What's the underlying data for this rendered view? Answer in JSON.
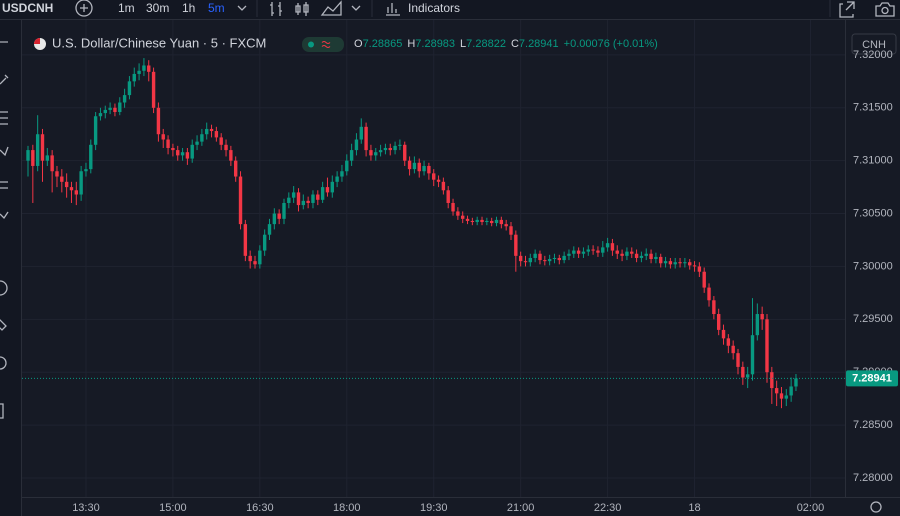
{
  "toolbar": {
    "symbol": "USDCNH",
    "intervals": [
      "1m",
      "30m",
      "1h",
      "5m"
    ],
    "indicators": "Indicators"
  },
  "chart_data": {
    "type": "candlestick",
    "title": "U.S. Dollar/Chinese Yuan · 5 · FXCM",
    "ohlc_labels": [
      "O",
      "H",
      "L",
      "C"
    ],
    "change": "+0.00076 (+0.01%)",
    "currency": "CNH",
    "up_color": "#089981",
    "down_color": "#f23645",
    "grid": true,
    "ylim": [
      7.2782,
      7.3233
    ],
    "yticks": [
      {
        "value": 7.28,
        "label": "7.28000"
      },
      {
        "value": 7.285,
        "label": "7.28500"
      },
      {
        "value": 7.29,
        "label": "7.29000"
      },
      {
        "value": 7.295,
        "label": "7.29500"
      },
      {
        "value": 7.3,
        "label": "7.30000"
      },
      {
        "value": 7.305,
        "label": "7.30500"
      },
      {
        "value": 7.31,
        "label": "7.31000"
      },
      {
        "value": 7.315,
        "label": "7.31500"
      },
      {
        "value": 7.32,
        "label": "7.32000"
      }
    ],
    "categories": [
      null,
      null,
      null,
      null,
      null,
      null,
      null,
      null,
      null,
      null,
      null,
      null,
      "13:30",
      null,
      null,
      null,
      null,
      null,
      null,
      null,
      null,
      null,
      null,
      null,
      null,
      null,
      null,
      null,
      null,
      null,
      "15:00",
      null,
      null,
      null,
      null,
      null,
      null,
      null,
      null,
      null,
      null,
      null,
      null,
      null,
      null,
      null,
      null,
      null,
      "16:30",
      null,
      null,
      null,
      null,
      null,
      null,
      null,
      null,
      null,
      null,
      null,
      null,
      null,
      null,
      null,
      null,
      null,
      "18:00",
      null,
      null,
      null,
      null,
      null,
      null,
      null,
      null,
      null,
      null,
      null,
      null,
      null,
      null,
      null,
      null,
      null,
      "19:30",
      null,
      null,
      null,
      null,
      null,
      null,
      null,
      null,
      null,
      null,
      null,
      null,
      null,
      null,
      null,
      null,
      null,
      "21:00",
      null,
      null,
      null,
      null,
      null,
      null,
      null,
      null,
      null,
      null,
      null,
      null,
      null,
      null,
      null,
      null,
      null,
      "22:30",
      null,
      null,
      null,
      null,
      null,
      null,
      null,
      null,
      null,
      null,
      null,
      null,
      null,
      null,
      null,
      null,
      null,
      "18",
      null,
      null,
      null,
      null,
      null,
      null,
      null,
      null,
      null,
      null,
      null,
      null,
      null,
      null,
      null,
      null,
      null,
      null,
      null,
      null,
      null,
      null,
      null,
      "02:00"
    ],
    "open": [
      7.31,
      7.311,
      7.3095,
      7.3125,
      7.31,
      7.3105,
      7.309,
      7.3085,
      7.308,
      7.3075,
      7.3072,
      7.3068,
      7.309,
      7.3092,
      7.3115,
      7.3142,
      7.3145,
      7.3148,
      7.315,
      7.3146,
      7.3155,
      7.3162,
      7.3175,
      7.3182,
      7.3185,
      7.319,
      7.3184,
      7.315,
      7.3125,
      7.312,
      7.3112,
      7.311,
      7.3105,
      7.3108,
      7.3102,
      7.3115,
      7.3118,
      7.3125,
      7.313,
      7.3128,
      7.3122,
      7.3115,
      7.311,
      7.31,
      7.3085,
      7.304,
      7.301,
      7.3005,
      7.3002,
      7.3015,
      7.303,
      7.304,
      7.305,
      7.3045,
      7.306,
      7.3065,
      7.307,
      7.3058,
      7.3062,
      7.306,
      7.3068,
      7.3063,
      7.3075,
      7.307,
      7.308,
      7.3085,
      7.309,
      7.31,
      7.311,
      7.312,
      7.3132,
      7.311,
      7.3105,
      7.3108,
      7.311,
      7.3112,
      7.311,
      7.3114,
      7.3115,
      7.31,
      7.3092,
      7.3098,
      7.309,
      7.3095,
      7.3088,
      7.3082,
      7.308,
      7.3072,
      7.306,
      7.3052,
      7.3048,
      7.3045,
      7.3043,
      7.3042,
      7.3044,
      7.3042,
      7.3043,
      7.3041,
      7.3044,
      7.304,
      7.3038,
      7.303,
      7.301,
      7.3005,
      7.3004,
      7.3008,
      7.3012,
      7.3006,
      7.3005,
      7.3007,
      7.3008,
      7.3006,
      7.301,
      7.3012,
      7.3015,
      7.3012,
      7.3014,
      7.3016,
      7.3015,
      7.3013,
      7.3018,
      7.3022,
      7.3015,
      7.3012,
      7.301,
      7.3014,
      7.3012,
      7.3008,
      7.301,
      7.3012,
      7.3007,
      7.3009,
      7.3003,
      7.3005,
      7.3002,
      7.3004,
      7.3003,
      7.3004,
      7.3001,
      7.3,
      7.2995,
      7.298,
      7.2968,
      7.2955,
      7.294,
      7.2932,
      7.2925,
      7.2918,
      7.2905,
      7.2895,
      7.2898,
      7.2935,
      7.2955,
      7.295,
      7.29,
      7.2885,
      7.288,
      7.2875,
      7.2878,
      7.28865,
      null,
      null,
      null
    ],
    "high": [
      7.3114,
      7.3115,
      7.3143,
      7.313,
      7.3112,
      7.311,
      7.3095,
      7.3092,
      7.3088,
      7.308,
      7.308,
      7.3095,
      7.3098,
      7.312,
      7.3146,
      7.315,
      7.3152,
      7.3155,
      7.3154,
      7.316,
      7.3168,
      7.318,
      7.3188,
      7.3192,
      7.3197,
      7.3195,
      7.3188,
      7.3155,
      7.313,
      7.3124,
      7.3116,
      7.3114,
      7.3112,
      7.3112,
      7.312,
      7.3124,
      7.313,
      7.3136,
      7.3134,
      7.3132,
      7.3126,
      7.312,
      7.3114,
      7.3104,
      7.309,
      7.3044,
      7.3015,
      7.301,
      7.302,
      7.3035,
      7.3045,
      7.3055,
      7.3054,
      7.3064,
      7.307,
      7.3076,
      7.3074,
      7.3068,
      7.3066,
      7.3072,
      7.3072,
      7.308,
      7.3084,
      7.3086,
      7.309,
      7.3096,
      7.3106,
      7.3116,
      7.3126,
      7.314,
      7.3136,
      7.3115,
      7.3112,
      7.3115,
      7.3116,
      7.3116,
      7.3118,
      7.312,
      7.3118,
      7.3104,
      7.3104,
      7.3102,
      7.31,
      7.3098,
      7.3092,
      7.3086,
      7.3084,
      7.3076,
      7.3064,
      7.3056,
      7.3052,
      7.3048,
      7.3046,
      7.3047,
      7.3047,
      7.3046,
      7.3046,
      7.3047,
      7.3047,
      7.3044,
      7.3042,
      7.3034,
      7.3014,
      7.301,
      7.3012,
      7.3016,
      7.3015,
      7.301,
      7.3011,
      7.3012,
      7.3011,
      7.3014,
      7.3016,
      7.3019,
      7.3018,
      7.3018,
      7.302,
      7.302,
      7.3019,
      7.3024,
      7.3027,
      7.3026,
      7.302,
      7.3016,
      7.3018,
      7.3018,
      7.3016,
      7.3014,
      7.3017,
      7.3016,
      7.3013,
      7.3012,
      7.3009,
      7.3008,
      7.3008,
      7.3008,
      7.3008,
      7.3007,
      7.3005,
      7.3004,
      7.2999,
      7.2984,
      7.2972,
      7.296,
      7.2945,
      7.2936,
      7.293,
      7.2922,
      7.291,
      7.2905,
      7.297,
      7.2965,
      7.2962,
      7.2955,
      7.2905,
      7.2892,
      7.2886,
      7.2884,
      7.2895,
      7.28983,
      null,
      null,
      null
    ],
    "low": [
      7.3085,
      7.306,
      7.309,
      7.308,
      7.3095,
      7.307,
      7.3075,
      7.307,
      7.3065,
      7.306,
      7.3058,
      7.3062,
      7.3085,
      7.3088,
      7.311,
      7.3138,
      7.314,
      7.3144,
      7.3142,
      7.3143,
      7.315,
      7.3158,
      7.317,
      7.3176,
      7.318,
      7.3175,
      7.3145,
      7.3118,
      7.3112,
      7.3106,
      7.3104,
      7.31,
      7.31,
      7.3096,
      7.3098,
      7.311,
      7.3114,
      7.312,
      7.3122,
      7.3118,
      7.311,
      7.3104,
      7.3095,
      7.308,
      7.3035,
      7.3005,
      7.2998,
      7.2998,
      7.2998,
      7.301,
      7.3025,
      7.3035,
      7.304,
      7.304,
      7.3055,
      7.306,
      7.3052,
      7.3054,
      7.3055,
      7.3055,
      7.3058,
      7.306,
      7.3066,
      7.3065,
      7.3075,
      7.308,
      7.3086,
      7.3095,
      7.3105,
      7.3116,
      7.3104,
      7.31,
      7.31,
      7.3104,
      7.3106,
      7.3105,
      7.3106,
      7.311,
      7.3095,
      7.3086,
      7.3088,
      7.3084,
      7.3086,
      7.3082,
      7.3076,
      7.3075,
      7.3068,
      7.3055,
      7.3048,
      7.3044,
      7.3041,
      7.304,
      7.3039,
      7.3039,
      7.3039,
      7.3039,
      7.3038,
      7.3038,
      7.3036,
      7.3034,
      7.3025,
      7.2995,
      7.3,
      7.3,
      7.3,
      7.3004,
      7.3002,
      7.3001,
      7.3001,
      7.3003,
      7.3002,
      7.3003,
      7.3006,
      7.3008,
      7.3008,
      7.3008,
      7.301,
      7.3011,
      7.3009,
      7.3009,
      7.3014,
      7.301,
      7.3007,
      7.3005,
      7.3006,
      7.3008,
      7.3004,
      7.3004,
      7.3006,
      7.3003,
      7.3003,
      7.2999,
      7.2999,
      7.2998,
      7.2998,
      7.2999,
      7.2999,
      7.2997,
      7.2995,
      7.299,
      7.2975,
      7.2962,
      7.295,
      7.2935,
      7.2926,
      7.2918,
      7.2912,
      7.2898,
      7.2888,
      7.2885,
      7.2892,
      7.293,
      7.294,
      7.289,
      7.287,
      7.2868,
      7.2866,
      7.2868,
      7.2872,
      7.28822,
      null,
      null,
      null
    ],
    "close": [
      7.311,
      7.3095,
      7.3125,
      7.31,
      7.3105,
      7.309,
      7.3085,
      7.308,
      7.3075,
      7.3072,
      7.3068,
      7.309,
      7.3092,
      7.3115,
      7.3142,
      7.3145,
      7.3148,
      7.315,
      7.3146,
      7.3155,
      7.3162,
      7.3175,
      7.3182,
      7.3185,
      7.319,
      7.3184,
      7.315,
      7.3125,
      7.312,
      7.3112,
      7.311,
      7.3105,
      7.3108,
      7.3102,
      7.3115,
      7.3118,
      7.3125,
      7.313,
      7.3128,
      7.3122,
      7.3115,
      7.311,
      7.31,
      7.3085,
      7.304,
      7.301,
      7.3005,
      7.3002,
      7.3015,
      7.303,
      7.304,
      7.305,
      7.3045,
      7.306,
      7.3065,
      7.307,
      7.3058,
      7.3062,
      7.306,
      7.3068,
      7.3063,
      7.3075,
      7.307,
      7.308,
      7.3085,
      7.309,
      7.31,
      7.311,
      7.312,
      7.3132,
      7.311,
      7.3105,
      7.3108,
      7.311,
      7.3112,
      7.311,
      7.3114,
      7.3115,
      7.31,
      7.3092,
      7.3098,
      7.309,
      7.3095,
      7.3088,
      7.3082,
      7.308,
      7.3072,
      7.306,
      7.3052,
      7.3048,
      7.3045,
      7.3043,
      7.3042,
      7.3044,
      7.3042,
      7.3043,
      7.3041,
      7.3044,
      7.304,
      7.3038,
      7.303,
      7.301,
      7.3005,
      7.3004,
      7.3008,
      7.3012,
      7.3006,
      7.3005,
      7.3007,
      7.3008,
      7.3006,
      7.301,
      7.3012,
      7.3015,
      7.3012,
      7.3014,
      7.3016,
      7.3015,
      7.3013,
      7.3018,
      7.3022,
      7.3015,
      7.3012,
      7.301,
      7.3014,
      7.3012,
      7.3008,
      7.301,
      7.3012,
      7.3007,
      7.3009,
      7.3003,
      7.3005,
      7.3002,
      7.3004,
      7.3003,
      7.3004,
      7.3001,
      7.3,
      7.2995,
      7.298,
      7.2968,
      7.2955,
      7.294,
      7.2932,
      7.2925,
      7.2918,
      7.2905,
      7.2895,
      7.2898,
      7.2935,
      7.2955,
      7.295,
      7.29,
      7.2885,
      7.288,
      7.2875,
      7.2878,
      7.28865,
      7.28941,
      null,
      null,
      null
    ]
  }
}
